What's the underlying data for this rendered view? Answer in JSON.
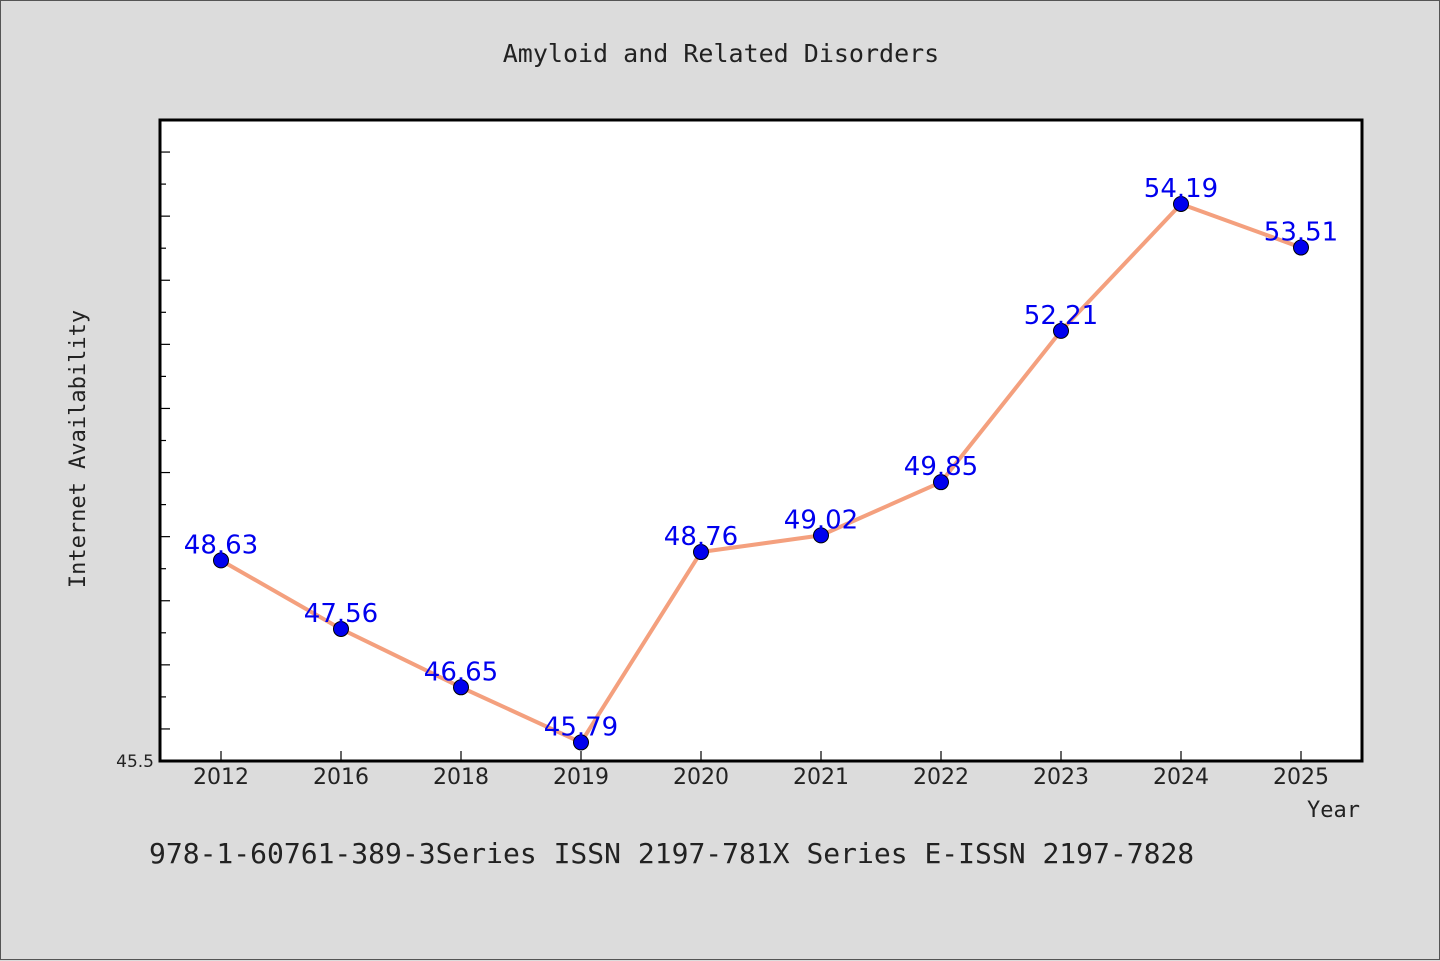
{
  "chart_data": {
    "type": "line",
    "title": "Amyloid and Related Disorders",
    "xlabel": "Year",
    "ylabel": "Internet Availability",
    "categories": [
      "2012",
      "2016",
      "2018",
      "2019",
      "2020",
      "2021",
      "2022",
      "2023",
      "2024",
      "2025"
    ],
    "series": [
      {
        "values": [
          48.63,
          47.56,
          46.65,
          45.79,
          48.76,
          49.02,
          49.85,
          52.21,
          54.19,
          53.51
        ],
        "labels": [
          "48.63",
          "47.56",
          "46.65",
          "45.79",
          "48.76",
          "49.02",
          "49.85",
          "52.21",
          "54.19",
          "53.51"
        ],
        "line_color": "#f4a07e",
        "marker_color": "#0000ee",
        "label_color": "#0000ee"
      }
    ],
    "ylim": [
      45.5,
      55.5
    ],
    "y_min_label": "45.5",
    "grid": false,
    "legend": "none"
  },
  "footer": {
    "text": "978-1-60761-389-3Series ISSN 2197-781X Series E-ISSN 2197-7828"
  },
  "colors": {
    "background": "#dcdcdc",
    "plot_background": "#ffffff",
    "axis": "#000000"
  }
}
